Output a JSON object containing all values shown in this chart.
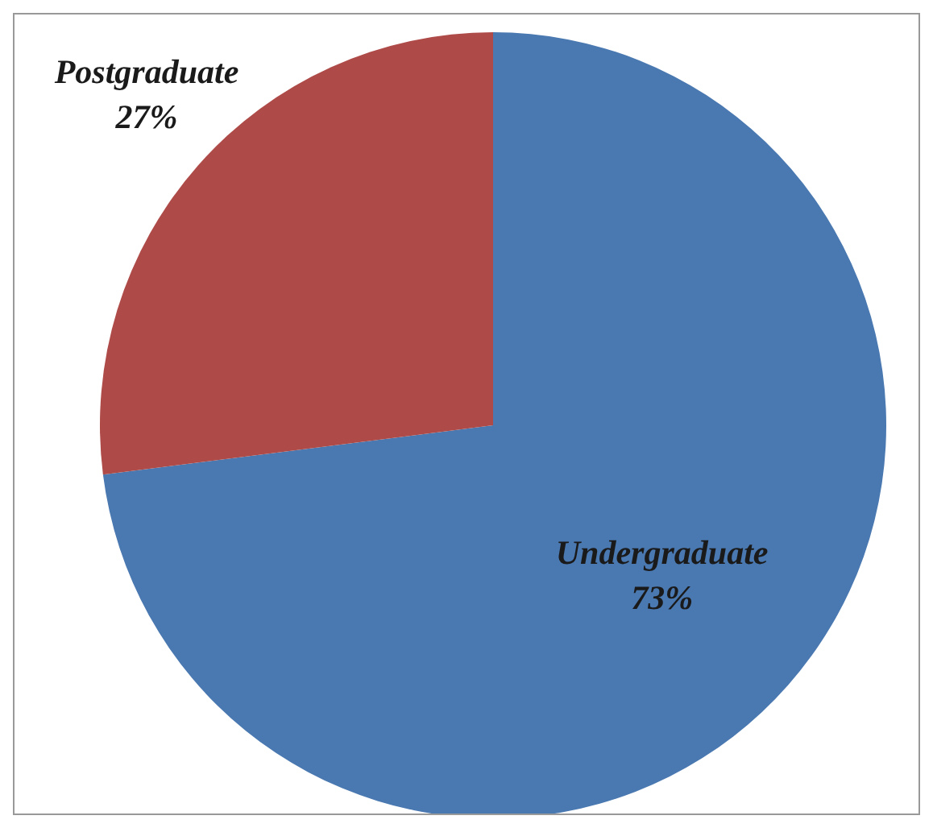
{
  "chart_data": {
    "type": "pie",
    "categories": [
      "Undergraduate",
      "Postgraduate"
    ],
    "values": [
      73,
      27
    ],
    "colors": [
      "#4a78b0",
      "#ae4b48"
    ],
    "value_labels": [
      "73%",
      "27%"
    ],
    "legend": false
  }
}
